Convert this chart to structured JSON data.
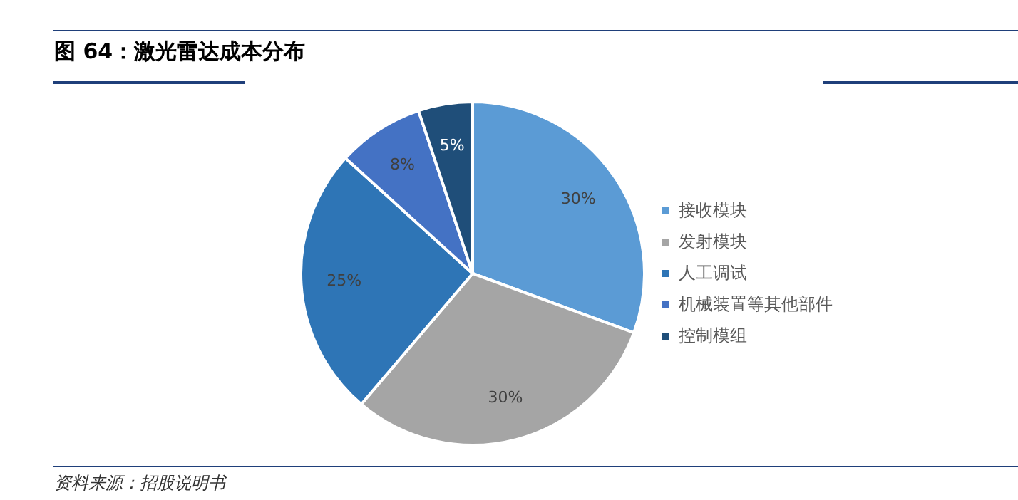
{
  "chart_data": {
    "type": "pie",
    "title": "图 64：激光雷达成本分布",
    "categories": [
      "接收模块",
      "发射模块",
      "人工调试",
      "机械装置等其他部件",
      "控制模组"
    ],
    "values": [
      30,
      30,
      25,
      8,
      5
    ],
    "value_labels": [
      "30%",
      "30%",
      "25%",
      "8%",
      "5%"
    ],
    "colors": [
      "#5b9bd5",
      "#a5a5a5",
      "#2e75b6",
      "#4472c4",
      "#1f4e79"
    ],
    "legend": "right",
    "annotations": [
      "资料来源：招股说明书"
    ]
  }
}
